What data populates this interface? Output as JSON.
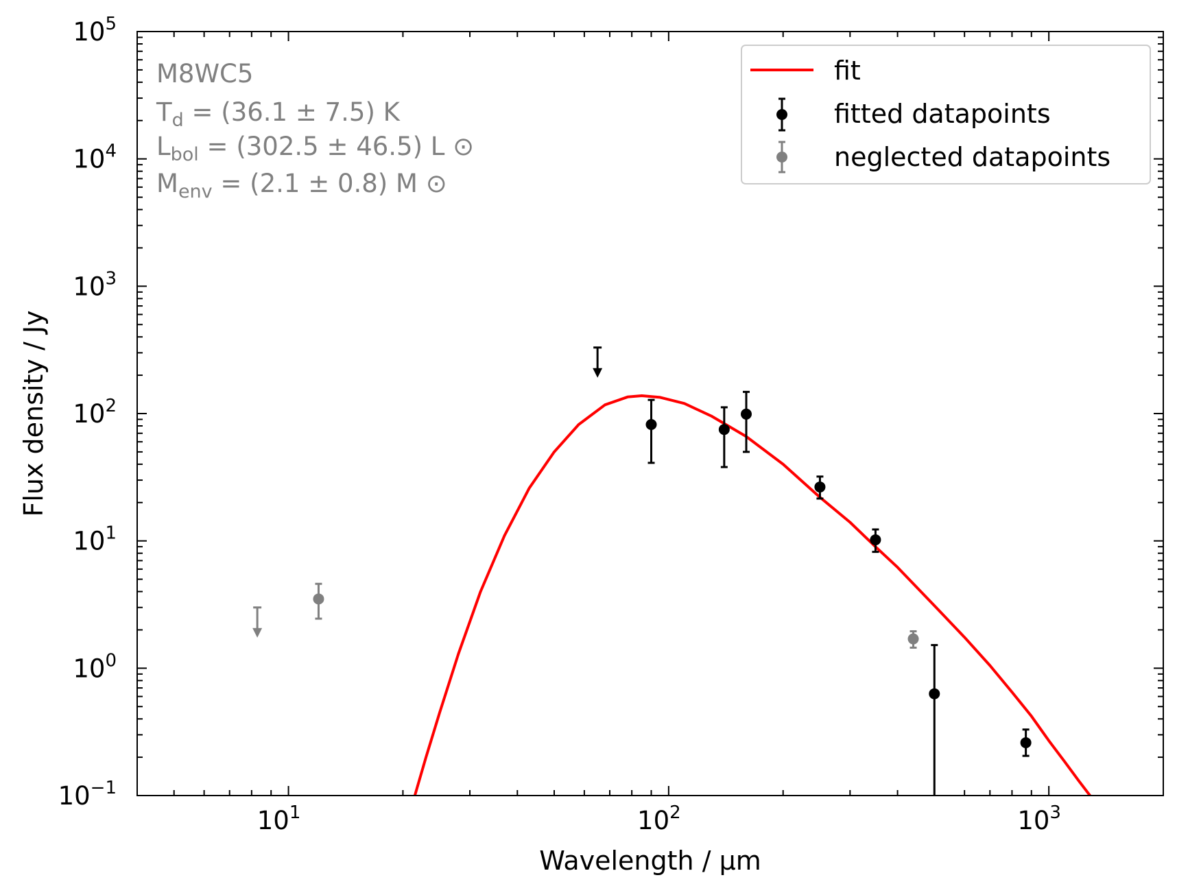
{
  "chart_data": {
    "type": "scatter",
    "xlabel": "Wavelength / μm",
    "ylabel": "Flux density / Jy",
    "xscale": "log",
    "yscale": "log",
    "xlim": [
      4.0,
      2000
    ],
    "ylim": [
      0.1,
      100000
    ],
    "xticks": [
      {
        "value": 10,
        "base": "10",
        "exp": "1"
      },
      {
        "value": 100,
        "base": "10",
        "exp": "2"
      },
      {
        "value": 1000,
        "base": "10",
        "exp": "3"
      }
    ],
    "yticks": [
      {
        "value": 0.1,
        "base": "10",
        "exp": "−1"
      },
      {
        "value": 1,
        "base": "10",
        "exp": "0"
      },
      {
        "value": 10,
        "base": "10",
        "exp": "1"
      },
      {
        "value": 100,
        "base": "10",
        "exp": "2"
      },
      {
        "value": 1000,
        "base": "10",
        "exp": "3"
      },
      {
        "value": 10000,
        "base": "10",
        "exp": "4"
      },
      {
        "value": 100000,
        "base": "10",
        "exp": "5"
      }
    ],
    "grid": false,
    "legend_position": "top-right",
    "annotation": {
      "source": "M8WC5",
      "lines": [
        {
          "symbol": "T",
          "sub": "d",
          "text": " = (36.1 ± 7.5) K"
        },
        {
          "symbol": "L",
          "sub": "bol",
          "text": " = (302.5 ± 46.5) L ⊙"
        },
        {
          "symbol": "M",
          "sub": "env",
          "text": " = (2.1 ± 0.8) M ⊙"
        }
      ]
    },
    "series": [
      {
        "name": "fit",
        "kind": "line",
        "color": "#ff0000",
        "x": [
          21.5,
          23,
          25,
          28,
          32,
          37,
          43,
          50,
          58,
          68,
          78,
          85,
          95,
          110,
          130,
          160,
          200,
          250,
          300,
          350,
          400,
          500,
          600,
          700,
          800,
          900,
          1000,
          1100,
          1200,
          1300
        ],
        "y": [
          0.1,
          0.2,
          0.45,
          1.3,
          4.0,
          11,
          26,
          50,
          82,
          117,
          135,
          138,
          134,
          120,
          95,
          66,
          40,
          22,
          14,
          9.0,
          6.2,
          3.1,
          1.75,
          1.05,
          0.65,
          0.42,
          0.27,
          0.185,
          0.13,
          0.095
        ]
      },
      {
        "name": "fitted datapoints",
        "kind": "errorbar",
        "color": "#000000",
        "points": [
          {
            "x": 90,
            "y": 82,
            "ylo": 41,
            "yhi": 128
          },
          {
            "x": 140,
            "y": 75,
            "ylo": 38,
            "yhi": 112
          },
          {
            "x": 160,
            "y": 99,
            "ylo": 50,
            "yhi": 148
          },
          {
            "x": 250,
            "y": 26.5,
            "ylo": 21.5,
            "yhi": 32
          },
          {
            "x": 350,
            "y": 10.2,
            "ylo": 8.2,
            "yhi": 12.3
          },
          {
            "x": 500,
            "y": 0.63,
            "ylo": 0.1,
            "yhi": 1.52
          },
          {
            "x": 870,
            "y": 0.26,
            "ylo": 0.205,
            "yhi": 0.33
          }
        ],
        "upper_limits": [
          {
            "x": 65,
            "y": 330
          }
        ]
      },
      {
        "name": "neglected datapoints",
        "kind": "errorbar",
        "color": "#808080",
        "points": [
          {
            "x": 12,
            "y": 3.5,
            "ylo": 2.45,
            "yhi": 4.6
          },
          {
            "x": 440,
            "y": 1.7,
            "ylo": 1.45,
            "yhi": 1.95
          }
        ],
        "upper_limits": [
          {
            "x": 8.28,
            "y": 3.0
          }
        ]
      }
    ]
  }
}
